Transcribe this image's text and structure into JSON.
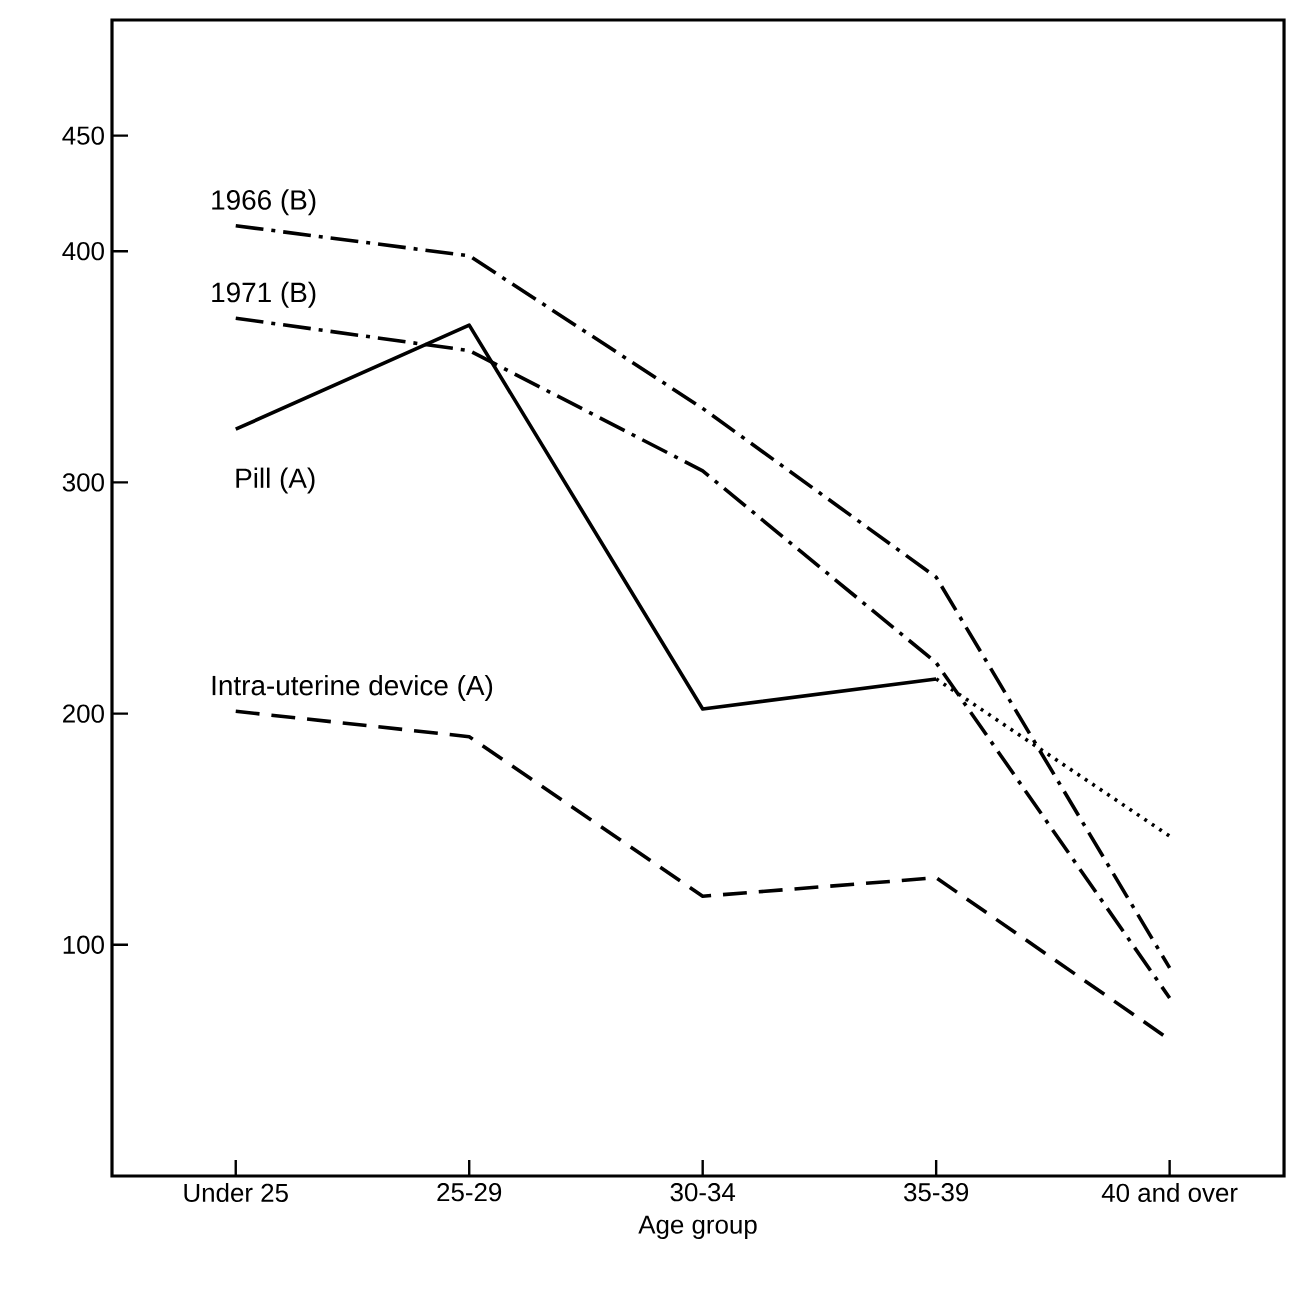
{
  "chart_data": {
    "type": "line",
    "xlabel": "Age group",
    "categories": [
      "Under 25",
      "25-29",
      "30-34",
      "35-39",
      "40 and over"
    ],
    "ylim": [
      0,
      500
    ],
    "yticks": [
      100,
      200,
      300,
      400,
      450
    ],
    "legend": false,
    "grid": false,
    "series": [
      {
        "name": "1966 (B)",
        "color": "#000000",
        "line_style": "dashdot",
        "values": [
          411,
          398,
          332,
          259,
          90
        ]
      },
      {
        "name": "1971 (B)",
        "color": "#000000",
        "line_style": "dashdot",
        "values": [
          371,
          357,
          305,
          222,
          77
        ]
      },
      {
        "name": "Pill (A)",
        "color": "#000000",
        "line_style": "solid",
        "values": [
          323,
          368,
          202,
          215,
          null
        ]
      },
      {
        "color": "#000000",
        "line_style": "dotted",
        "values": [
          null,
          null,
          null,
          215,
          147
        ]
      },
      {
        "name": "Intra-uterine device (A)",
        "color": "#000000",
        "line_style": "dashed",
        "values": [
          201,
          190,
          121,
          129,
          59
        ]
      }
    ]
  }
}
